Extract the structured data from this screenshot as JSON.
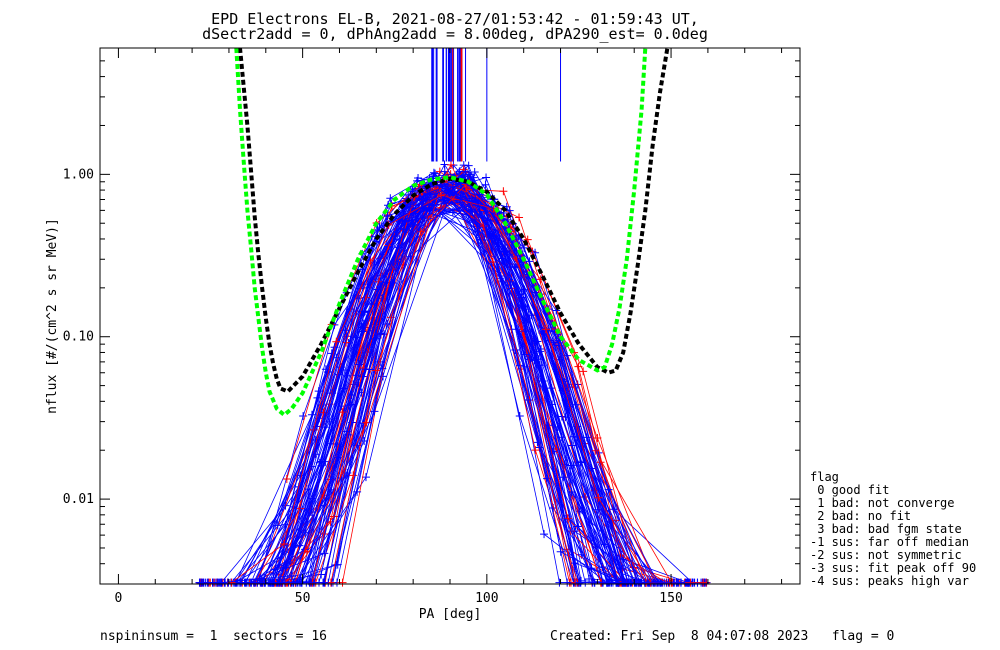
{
  "chart_data": {
    "type": "line",
    "title": "EPD Electrons EL-B, 2021-08-27/01:53:42 - 01:59:43 UT,",
    "subtitle": "dSectr2add = 0, dPhAng2add = 8.00deg, dPA290_est=   0.0deg",
    "xlabel": "PA [deg]",
    "ylabel": "nflux [#/(cm^2 s sr MeV)]",
    "xlim": [
      -5,
      185
    ],
    "ylim": [
      0.003,
      6
    ],
    "yscale": "log",
    "x_ticks": [
      {
        "value": 0,
        "label": "0"
      },
      {
        "value": 50,
        "label": "50"
      },
      {
        "value": 100,
        "label": "100"
      },
      {
        "value": 150,
        "label": "150"
      }
    ],
    "y_ticks": [
      {
        "value": 0.01,
        "label": "0.01"
      },
      {
        "value": 0.1,
        "label": "0.10"
      },
      {
        "value": 1.0,
        "label": "1.00"
      }
    ],
    "grid": false,
    "colors": {
      "flag0": "#0000ff",
      "flag1": "#ff0000",
      "fit_black": "#000000",
      "fit_green": "#00ff00"
    },
    "series": [
      {
        "color": "#000000",
        "style": "dashed",
        "x": [
          33,
          35,
          37,
          38,
          39,
          40,
          41,
          42,
          43,
          44,
          46,
          50,
          55,
          60,
          65,
          70,
          75,
          80,
          85,
          90,
          95,
          100,
          105,
          110,
          115,
          120,
          125,
          130,
          133,
          135,
          137,
          139,
          141,
          143,
          145,
          147,
          149
        ],
        "y": [
          6.0,
          2.0,
          0.55,
          0.32,
          0.2,
          0.13,
          0.09,
          0.068,
          0.055,
          0.048,
          0.046,
          0.057,
          0.09,
          0.15,
          0.25,
          0.4,
          0.57,
          0.74,
          0.87,
          0.94,
          0.9,
          0.78,
          0.6,
          0.4,
          0.24,
          0.14,
          0.09,
          0.065,
          0.06,
          0.062,
          0.08,
          0.14,
          0.28,
          0.6,
          1.5,
          3.2,
          6.0
        ]
      },
      {
        "color": "#00ff00",
        "style": "dashed",
        "x": [
          32,
          33,
          34,
          35,
          36,
          37,
          38,
          39,
          40,
          41,
          43,
          45,
          47,
          50,
          55,
          60,
          65,
          70,
          75,
          80,
          85,
          90,
          95,
          100,
          105,
          110,
          115,
          120,
          125,
          130,
          132,
          134,
          136,
          138,
          140,
          142,
          143
        ],
        "y": [
          6.0,
          2.5,
          1.2,
          0.6,
          0.35,
          0.2,
          0.13,
          0.085,
          0.06,
          0.046,
          0.036,
          0.033,
          0.036,
          0.045,
          0.08,
          0.16,
          0.3,
          0.5,
          0.7,
          0.85,
          0.93,
          0.96,
          0.9,
          0.75,
          0.5,
          0.3,
          0.17,
          0.1,
          0.072,
          0.062,
          0.065,
          0.09,
          0.15,
          0.3,
          0.8,
          2.5,
          6.0
        ]
      }
    ],
    "ensemble": {
      "description_colors": [
        "#0000ff",
        "#ff0000"
      ],
      "peak_pa": 90,
      "peak_flux": 0.95
    },
    "legend": {
      "title": "flag",
      "items": [
        " 0 good fit",
        " 1 bad: not converge",
        " 2 bad: no fit",
        " 3 bad: bad fgm state",
        "-1 sus: far off median",
        "-2 sus: not symmetric",
        "-3 sus: fit peak off 90",
        "-4 sus: peaks high var"
      ]
    },
    "footer": {
      "left": "nspininsum =  1  sectors = 16",
      "right": "Created: Fri Sep  8 04:07:08 2023   flag = 0"
    }
  }
}
